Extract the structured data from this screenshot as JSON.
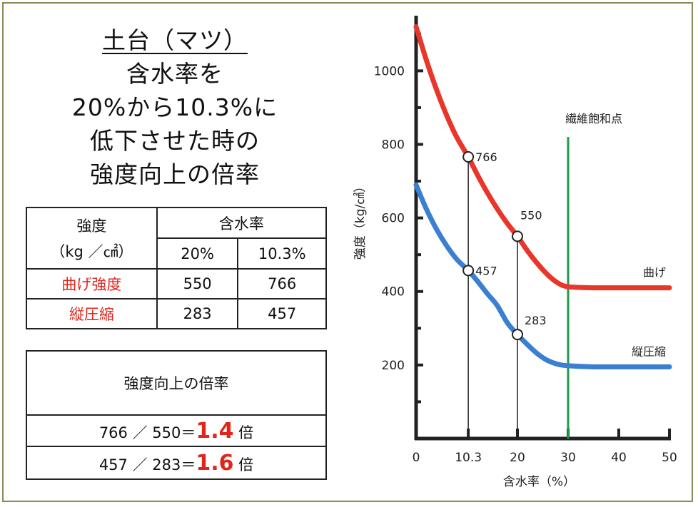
{
  "title": {
    "line1": "土台（マツ）",
    "line2": "含水率を",
    "line3": "20%から10.3%に",
    "line4": "低下させた時の",
    "line5": "強度向上の倍率"
  },
  "table": {
    "header_strength": "強度",
    "header_unit": "（kg ／㎠）",
    "header_moisture": "含水率",
    "col_20": "20%",
    "col_103": "10.3%",
    "rows": [
      {
        "label": "曲げ強度",
        "v20": "550",
        "v103": "766"
      },
      {
        "label": "縦圧縮",
        "v20": "283",
        "v103": "457"
      }
    ]
  },
  "ratio": {
    "header": "強度向上の倍率",
    "rows": [
      {
        "expr": "766 ／ 550＝",
        "value": "1.4",
        "unit": "倍"
      },
      {
        "expr": "457 ／ 283＝",
        "value": "1.6",
        "unit": "倍"
      }
    ]
  },
  "chart_data": {
    "type": "line",
    "title": "",
    "xlabel": "含水率（%）",
    "ylabel": "強度（kg/㎠）",
    "xlim": [
      0,
      50
    ],
    "ylim": [
      0,
      1150
    ],
    "x_ticks": [
      0,
      10.3,
      20,
      30,
      40,
      50
    ],
    "x_tick_labels": [
      "0",
      "10.3",
      "20",
      "30",
      "40",
      "50"
    ],
    "y_ticks": [
      200,
      400,
      600,
      800,
      1000
    ],
    "series": [
      {
        "name": "曲げ",
        "color": "#e8362a",
        "x": [
          0,
          2,
          4,
          6,
          8,
          10.3,
          12,
          14,
          16,
          18,
          20,
          22,
          24,
          26,
          28,
          30,
          35,
          40,
          45,
          50
        ],
        "y": [
          1120,
          1030,
          950,
          880,
          820,
          766,
          720,
          670,
          625,
          585,
          550,
          510,
          475,
          445,
          423,
          413,
          410,
          410,
          410,
          410
        ]
      },
      {
        "name": "縦圧縮",
        "color": "#3a7fd0",
        "x": [
          0,
          2,
          4,
          6,
          8,
          10.3,
          12,
          14,
          16,
          18,
          20,
          22,
          24,
          26,
          28,
          30,
          35,
          40,
          45,
          50
        ],
        "y": [
          690,
          625,
          570,
          525,
          488,
          457,
          430,
          395,
          362,
          315,
          283,
          255,
          230,
          212,
          202,
          198,
          195,
          195,
          195,
          195
        ]
      }
    ],
    "marked_points": [
      {
        "x": 10.3,
        "y": 766,
        "label": "766"
      },
      {
        "x": 20,
        "y": 550,
        "label": "550"
      },
      {
        "x": 10.3,
        "y": 457,
        "label": "457"
      },
      {
        "x": 20,
        "y": 283,
        "label": "283"
      }
    ],
    "reference_line": {
      "x": 30,
      "label": "繊維飽和点",
      "color": "#1e9a4a"
    },
    "grid": false
  }
}
